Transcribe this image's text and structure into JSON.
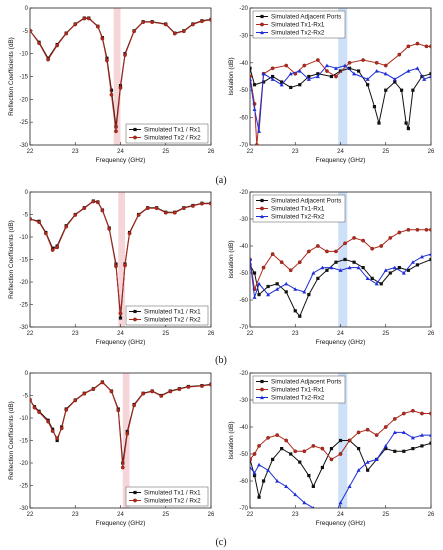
{
  "figure": {
    "captions": [
      "(a)",
      "(b)",
      "(c)"
    ]
  },
  "colors": {
    "adjacent": "#111111",
    "tx1": "#b22a1e",
    "tx2": "#1f2fd6",
    "refl_tx1": "#111111",
    "refl_tx2": "#b22a1e",
    "band_pink": "#f3c7cb",
    "band_blue": "#bcd6f4"
  },
  "chart_data": [
    {
      "id": "a-left",
      "type": "line",
      "xlabel": "Frequency (GHz)",
      "ylabel": "Reflection Coefficients (dB)",
      "xlim": [
        22,
        26
      ],
      "ylim": [
        -30,
        0
      ],
      "xticks": [
        "22",
        "23",
        "24",
        "25",
        "26"
      ],
      "yticks": [
        "0",
        "-5",
        "-10",
        "-15",
        "-20",
        "-25",
        "-30"
      ],
      "legend_position": "bottom-right",
      "highlight_band": [
        23.85,
        24.0
      ],
      "series": [
        {
          "name": "Simulated Tx1 / Rx1",
          "x": [
            22,
            22.2,
            22.4,
            22.6,
            22.8,
            23,
            23.2,
            23.3,
            23.5,
            23.6,
            23.7,
            23.8,
            23.9,
            24.0,
            24.1,
            24.3,
            24.5,
            24.7,
            25.0,
            25.2,
            25.4,
            25.6,
            25.8,
            26
          ],
          "values": [
            -5,
            -7.5,
            -11,
            -8,
            -5.5,
            -3.5,
            -2.2,
            -2.2,
            -4,
            -6.5,
            -11,
            -18,
            -26,
            -17,
            -10,
            -5,
            -3,
            -3,
            -3.5,
            -5.5,
            -5,
            -3.5,
            -2.8,
            -2.5
          ]
        },
        {
          "name": "Simulated Tx2 / Rx2",
          "x": [
            22,
            22.2,
            22.4,
            22.6,
            22.8,
            23,
            23.2,
            23.3,
            23.5,
            23.6,
            23.7,
            23.8,
            23.9,
            24.0,
            24.1,
            24.3,
            24.5,
            24.7,
            25.0,
            25.2,
            25.4,
            25.6,
            25.8,
            26
          ],
          "values": [
            -5,
            -7.7,
            -11.3,
            -8.2,
            -5.6,
            -3.6,
            -2.3,
            -2.3,
            -4.1,
            -6.7,
            -11.5,
            -19,
            -27,
            -17.5,
            -10.3,
            -5.1,
            -3.1,
            -3.1,
            -3.6,
            -5.6,
            -5.1,
            -3.6,
            -2.9,
            -2.6
          ]
        }
      ]
    },
    {
      "id": "a-right",
      "type": "line",
      "xlabel": "Frequency (GHz)",
      "ylabel": "Isolation (dB)",
      "xlim": [
        22,
        26
      ],
      "ylim": [
        -70,
        -20
      ],
      "xticks": [
        "22",
        "23",
        "24",
        "25",
        "26"
      ],
      "yticks": [
        "-20",
        "-30",
        "-40",
        "-50",
        "-60",
        "-70"
      ],
      "legend_position": "top-left",
      "highlight_band": [
        23.95,
        24.15
      ],
      "series": [
        {
          "name": "Simulated Adjacent Ports",
          "x": [
            22,
            22.1,
            22.3,
            22.5,
            22.7,
            22.9,
            23.1,
            23.3,
            23.5,
            23.8,
            24.0,
            24.2,
            24.4,
            24.6,
            24.75,
            24.85,
            25.0,
            25.2,
            25.35,
            25.45,
            25.5,
            25.6,
            25.8,
            26
          ],
          "values": [
            -42,
            -48,
            -47,
            -45,
            -47,
            -49,
            -48,
            -45,
            -44,
            -45,
            -43,
            -42,
            -43,
            -48,
            -56,
            -62,
            -50,
            -47,
            -50,
            -62,
            -64,
            -50,
            -45,
            -44
          ]
        },
        {
          "name": "Simulated Tx1-Rx1",
          "x": [
            22,
            22.1,
            22.15,
            22.3,
            22.5,
            22.8,
            23.0,
            23.2,
            23.5,
            23.7,
            23.9,
            24.2,
            24.5,
            24.8,
            25.0,
            25.3,
            25.5,
            25.7,
            25.9,
            26
          ],
          "values": [
            -45,
            -55,
            -70,
            -44,
            -42,
            -41,
            -44,
            -41,
            -39,
            -43,
            -45,
            -40,
            -39,
            -40,
            -41,
            -37,
            -34,
            -33,
            -34,
            -34
          ]
        },
        {
          "name": "Simulated Tx2-Rx2",
          "x": [
            22,
            22.1,
            22.2,
            22.3,
            22.5,
            22.7,
            22.9,
            23.1,
            23.3,
            23.5,
            23.7,
            23.9,
            24.1,
            24.3,
            24.6,
            24.8,
            25.0,
            25.2,
            25.5,
            25.7,
            25.85,
            26
          ],
          "values": [
            -46,
            -57,
            -65,
            -44,
            -46,
            -48,
            -44,
            -43,
            -46,
            -45,
            -41,
            -42,
            -41,
            -44,
            -46,
            -43,
            -44,
            -46,
            -43,
            -42,
            -46,
            -45
          ]
        }
      ]
    },
    {
      "id": "b-left",
      "type": "line",
      "xlabel": "Frequency (GHz)",
      "ylabel": "Reflection Coefficients (dB)",
      "xlim": [
        22,
        26
      ],
      "ylim": [
        -30,
        0
      ],
      "xticks": [
        "22",
        "23",
        "24",
        "25",
        "26"
      ],
      "yticks": [
        "0",
        "-5",
        "-10",
        "-15",
        "-20",
        "-25",
        "-30"
      ],
      "legend_position": "bottom-right",
      "highlight_band": [
        23.95,
        24.1
      ],
      "series": [
        {
          "name": "Simulated Tx1 / Rx1",
          "x": [
            22,
            22.2,
            22.35,
            22.5,
            22.6,
            22.8,
            23.0,
            23.2,
            23.4,
            23.5,
            23.6,
            23.75,
            23.9,
            24.0,
            24.1,
            24.2,
            24.4,
            24.6,
            24.8,
            25.0,
            25.2,
            25.4,
            25.6,
            25.8,
            26
          ],
          "values": [
            -6,
            -6.5,
            -9,
            -12.5,
            -12,
            -7.5,
            -5,
            -3.5,
            -2,
            -2.2,
            -4,
            -8,
            -16,
            -28,
            -16,
            -9,
            -5,
            -3.5,
            -3.5,
            -4.5,
            -4.5,
            -3.5,
            -3,
            -2.5,
            -2.5
          ]
        },
        {
          "name": "Simulated Tx2 / Rx2",
          "x": [
            22,
            22.2,
            22.35,
            22.5,
            22.6,
            22.8,
            23.0,
            23.2,
            23.4,
            23.5,
            23.6,
            23.75,
            23.9,
            24.0,
            24.1,
            24.2,
            24.4,
            24.6,
            24.8,
            25.0,
            25.2,
            25.4,
            25.6,
            25.8,
            26
          ],
          "values": [
            -6,
            -6.7,
            -9.2,
            -12.9,
            -12.3,
            -7.7,
            -5.1,
            -3.6,
            -2.1,
            -2.3,
            -4.1,
            -8.2,
            -16.5,
            -27,
            -16.3,
            -9.2,
            -5.1,
            -3.6,
            -3.6,
            -4.6,
            -4.6,
            -3.6,
            -3.1,
            -2.6,
            -2.6
          ]
        }
      ]
    },
    {
      "id": "b-right",
      "type": "line",
      "xlabel": "Frequency (GHz)",
      "ylabel": "Isolation (dB)",
      "xlim": [
        22,
        26
      ],
      "ylim": [
        -70,
        -20
      ],
      "xticks": [
        "22",
        "23",
        "24",
        "25",
        "26"
      ],
      "yticks": [
        "-20",
        "-30",
        "-40",
        "-50",
        "-60",
        "-70"
      ],
      "legend_position": "top-left",
      "highlight_band": [
        23.95,
        24.15
      ],
      "series": [
        {
          "name": "Simulated Adjacent Ports",
          "x": [
            22,
            22.1,
            22.2,
            22.4,
            22.6,
            22.8,
            23.0,
            23.1,
            23.3,
            23.5,
            23.7,
            23.9,
            24.1,
            24.3,
            24.5,
            24.7,
            24.9,
            25.1,
            25.3,
            25.5,
            25.7,
            26
          ],
          "values": [
            -47,
            -50,
            -58,
            -55,
            -54,
            -57,
            -64,
            -66,
            -58,
            -52,
            -49,
            -46,
            -45,
            -46,
            -48,
            -52,
            -54,
            -50,
            -48,
            -49,
            -47,
            -45
          ]
        },
        {
          "name": "Simulated Tx1-Rx1",
          "x": [
            22,
            22.1,
            22.3,
            22.5,
            22.7,
            22.9,
            23.1,
            23.3,
            23.5,
            23.7,
            23.9,
            24.1,
            24.3,
            24.5,
            24.7,
            24.9,
            25.1,
            25.3,
            25.5,
            25.7,
            25.9,
            26
          ],
          "values": [
            -45,
            -56,
            -48,
            -43,
            -46,
            -49,
            -46,
            -42,
            -40,
            -42,
            -42,
            -39,
            -37,
            -38,
            -41,
            -40,
            -37,
            -35,
            -34,
            -34,
            -34,
            -34
          ]
        },
        {
          "name": "Simulated Tx2-Rx2",
          "x": [
            22,
            22.1,
            22.2,
            22.4,
            22.6,
            22.8,
            23.0,
            23.2,
            23.4,
            23.6,
            23.8,
            24.0,
            24.2,
            24.4,
            24.6,
            24.8,
            25.0,
            25.2,
            25.4,
            25.6,
            25.8,
            26
          ],
          "values": [
            -45,
            -59,
            -54,
            -58,
            -56,
            -54,
            -56,
            -57,
            -50,
            -48,
            -48,
            -49,
            -48,
            -48,
            -52,
            -54,
            -49,
            -48,
            -50,
            -46,
            -44,
            -43
          ]
        }
      ]
    },
    {
      "id": "c-left",
      "type": "line",
      "xlabel": "Frequency (GHz)",
      "ylabel": "Reflection Coefficients (dB)",
      "xlim": [
        22,
        26
      ],
      "ylim": [
        -30,
        0
      ],
      "xticks": [
        "22",
        "23",
        "24",
        "25",
        "26"
      ],
      "yticks": [
        "0",
        "-5",
        "-10",
        "-15",
        "-20",
        "-25",
        "-30"
      ],
      "legend_position": "bottom-right",
      "highlight_band": [
        24.05,
        24.2
      ],
      "series": [
        {
          "name": "Simulated Tx1 / Rx1",
          "x": [
            22,
            22.1,
            22.2,
            22.4,
            22.5,
            22.6,
            22.7,
            22.8,
            23.0,
            23.2,
            23.4,
            23.6,
            23.8,
            23.95,
            24.05,
            24.15,
            24.3,
            24.5,
            24.7,
            24.9,
            25.1,
            25.3,
            25.5,
            25.8,
            26
          ],
          "values": [
            -6,
            -7.5,
            -8.5,
            -10.5,
            -12.5,
            -15,
            -12,
            -8,
            -6,
            -4.5,
            -3.5,
            -2,
            -4,
            -8,
            -20,
            -13,
            -7,
            -4.5,
            -4,
            -5,
            -4,
            -3.5,
            -3,
            -2.8,
            -2.5
          ]
        },
        {
          "name": "Simulated Tx2 / Rx2",
          "x": [
            22,
            22.1,
            22.2,
            22.4,
            22.5,
            22.6,
            22.7,
            22.8,
            23.0,
            23.2,
            23.4,
            23.6,
            23.8,
            23.95,
            24.05,
            24.15,
            24.3,
            24.5,
            24.7,
            24.9,
            25.1,
            25.3,
            25.5,
            25.8,
            26
          ],
          "values": [
            -6,
            -7.7,
            -8.7,
            -10.8,
            -12.9,
            -14.5,
            -12.3,
            -8.2,
            -6.1,
            -4.6,
            -3.6,
            -2.1,
            -4.1,
            -8.3,
            -21,
            -13.5,
            -7.2,
            -4.6,
            -4.1,
            -5.1,
            -4.1,
            -3.6,
            -3.1,
            -2.9,
            -2.6
          ]
        }
      ]
    },
    {
      "id": "c-right",
      "type": "line",
      "xlabel": "Frequency (GHz)",
      "ylabel": "Isolation (dB)",
      "xlim": [
        22,
        26
      ],
      "ylim": [
        -70,
        -20
      ],
      "xticks": [
        "22",
        "23",
        "24",
        "25",
        "26"
      ],
      "yticks": [
        "-20",
        "-30",
        "-40",
        "-50",
        "-60",
        "-70"
      ],
      "legend_position": "top-left",
      "highlight_band": [
        23.95,
        24.15
      ],
      "series": [
        {
          "name": "Simulated Adjacent Ports",
          "x": [
            22,
            22.1,
            22.2,
            22.3,
            22.5,
            22.7,
            22.9,
            23.1,
            23.3,
            23.4,
            23.6,
            23.8,
            24.0,
            24.2,
            24.4,
            24.6,
            24.8,
            25.0,
            25.2,
            25.4,
            25.6,
            25.8,
            26
          ],
          "values": [
            -52,
            -58,
            -66,
            -60,
            -52,
            -48,
            -50,
            -53,
            -58,
            -62,
            -55,
            -48,
            -45,
            -45,
            -48,
            -56,
            -52,
            -48,
            -49,
            -49,
            -48,
            -47,
            -46
          ]
        },
        {
          "name": "Simulated Tx1-Rx1",
          "x": [
            22,
            22.1,
            22.2,
            22.4,
            22.6,
            22.8,
            23.0,
            23.2,
            23.4,
            23.6,
            23.8,
            24.0,
            24.2,
            24.4,
            24.6,
            24.8,
            25.0,
            25.2,
            25.4,
            25.6,
            25.8,
            26
          ],
          "values": [
            -52,
            -50,
            -47,
            -44,
            -43,
            -45,
            -49,
            -49,
            -47,
            -48,
            -52,
            -50,
            -45,
            -42,
            -41,
            -43,
            -40,
            -37,
            -35,
            -34,
            -35,
            -35
          ]
        },
        {
          "name": "Simulated Tx2-Rx2",
          "x": [
            22,
            22.1,
            22.2,
            22.4,
            22.6,
            22.8,
            23.0,
            23.2,
            23.4,
            23.5,
            23.7,
            23.9,
            24.0,
            24.2,
            24.4,
            24.6,
            24.8,
            25.0,
            25.2,
            25.4,
            25.6,
            25.8,
            26
          ],
          "values": [
            -55,
            -57,
            -54,
            -56,
            -60,
            -62,
            -65,
            -68,
            -70,
            -72,
            -74,
            -72,
            -68,
            -62,
            -56,
            -53,
            -52,
            -47,
            -42,
            -42,
            -44,
            -43,
            -43
          ]
        }
      ]
    }
  ]
}
